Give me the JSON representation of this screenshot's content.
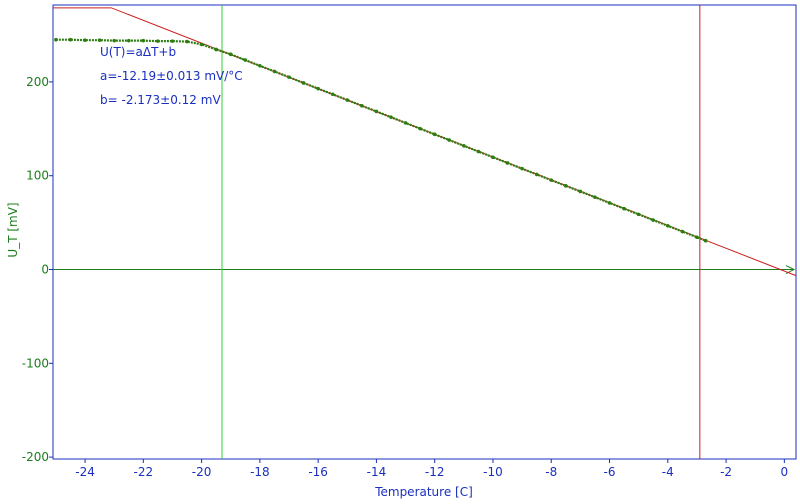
{
  "colors": {
    "frame": "#1a2fbf",
    "x_text": "#1a2fbf",
    "y_text": "#1e7d1e",
    "data": "#2e7d10",
    "fit_line": "#cc2020",
    "zero_line": "#1e7d1e",
    "cursor_left": "#33cc33",
    "cursor_right": "#cc2020"
  },
  "chart_data": {
    "type": "scatter",
    "xlabel": "Temperature [C]",
    "ylabel": "U_T [mV]",
    "xlim": [
      -25.1,
      0.4
    ],
    "ylim": [
      -202,
      282
    ],
    "x_ticks": [
      -24,
      -22,
      -20,
      -18,
      -16,
      -14,
      -12,
      -10,
      -8,
      -6,
      -4,
      -2,
      0
    ],
    "y_ticks": [
      -200,
      -100,
      0,
      100,
      200
    ],
    "grid": false,
    "annotations": [
      "U(T)=aΔT+b",
      "a=-12.19±0.013 mV/°C",
      "b= -2.173±0.12 mV"
    ],
    "fit": {
      "slope": -12.19,
      "intercept": -2.173
    },
    "fit_line": {
      "x": [
        -25.1,
        -23.1,
        0.4
      ],
      "y": [
        279,
        279,
        -6.5
      ]
    },
    "cursors": {
      "left_x": -19.3,
      "right_x": -2.9
    },
    "series": [
      {
        "x": [
          -25,
          -24.5,
          -24,
          -23.5,
          -23,
          -22.5,
          -22,
          -21.5,
          -21,
          -20.5,
          -20,
          -19.5,
          -19,
          -18.5,
          -18,
          -17.5,
          -17,
          -16.5,
          -16,
          -15.5,
          -15,
          -14.5,
          -14,
          -13.5,
          -13,
          -12.5,
          -12,
          -11.5,
          -11,
          -10.5,
          -10,
          -9.5,
          -9,
          -8.5,
          -8,
          -7.5,
          -7,
          -6.5,
          -6,
          -5.5,
          -5,
          -4.5,
          -4,
          -3.5,
          -3,
          -2.7
        ],
        "y": [
          245,
          245,
          244.5,
          244.5,
          244,
          244,
          244,
          243.5,
          243.5,
          243,
          240,
          234.6,
          229.4,
          223.3,
          217.2,
          211.2,
          205.1,
          198.9,
          192.8,
          186.8,
          180.7,
          174.6,
          168.5,
          162.4,
          156.3,
          150.2,
          144.1,
          138.0,
          131.9,
          125.8,
          119.7,
          113.6,
          107.5,
          101.4,
          95.3,
          89.2,
          83.2,
          77.1,
          71.0,
          64.9,
          58.8,
          52.7,
          46.6,
          40.5,
          34.4,
          30.7
        ]
      }
    ]
  }
}
